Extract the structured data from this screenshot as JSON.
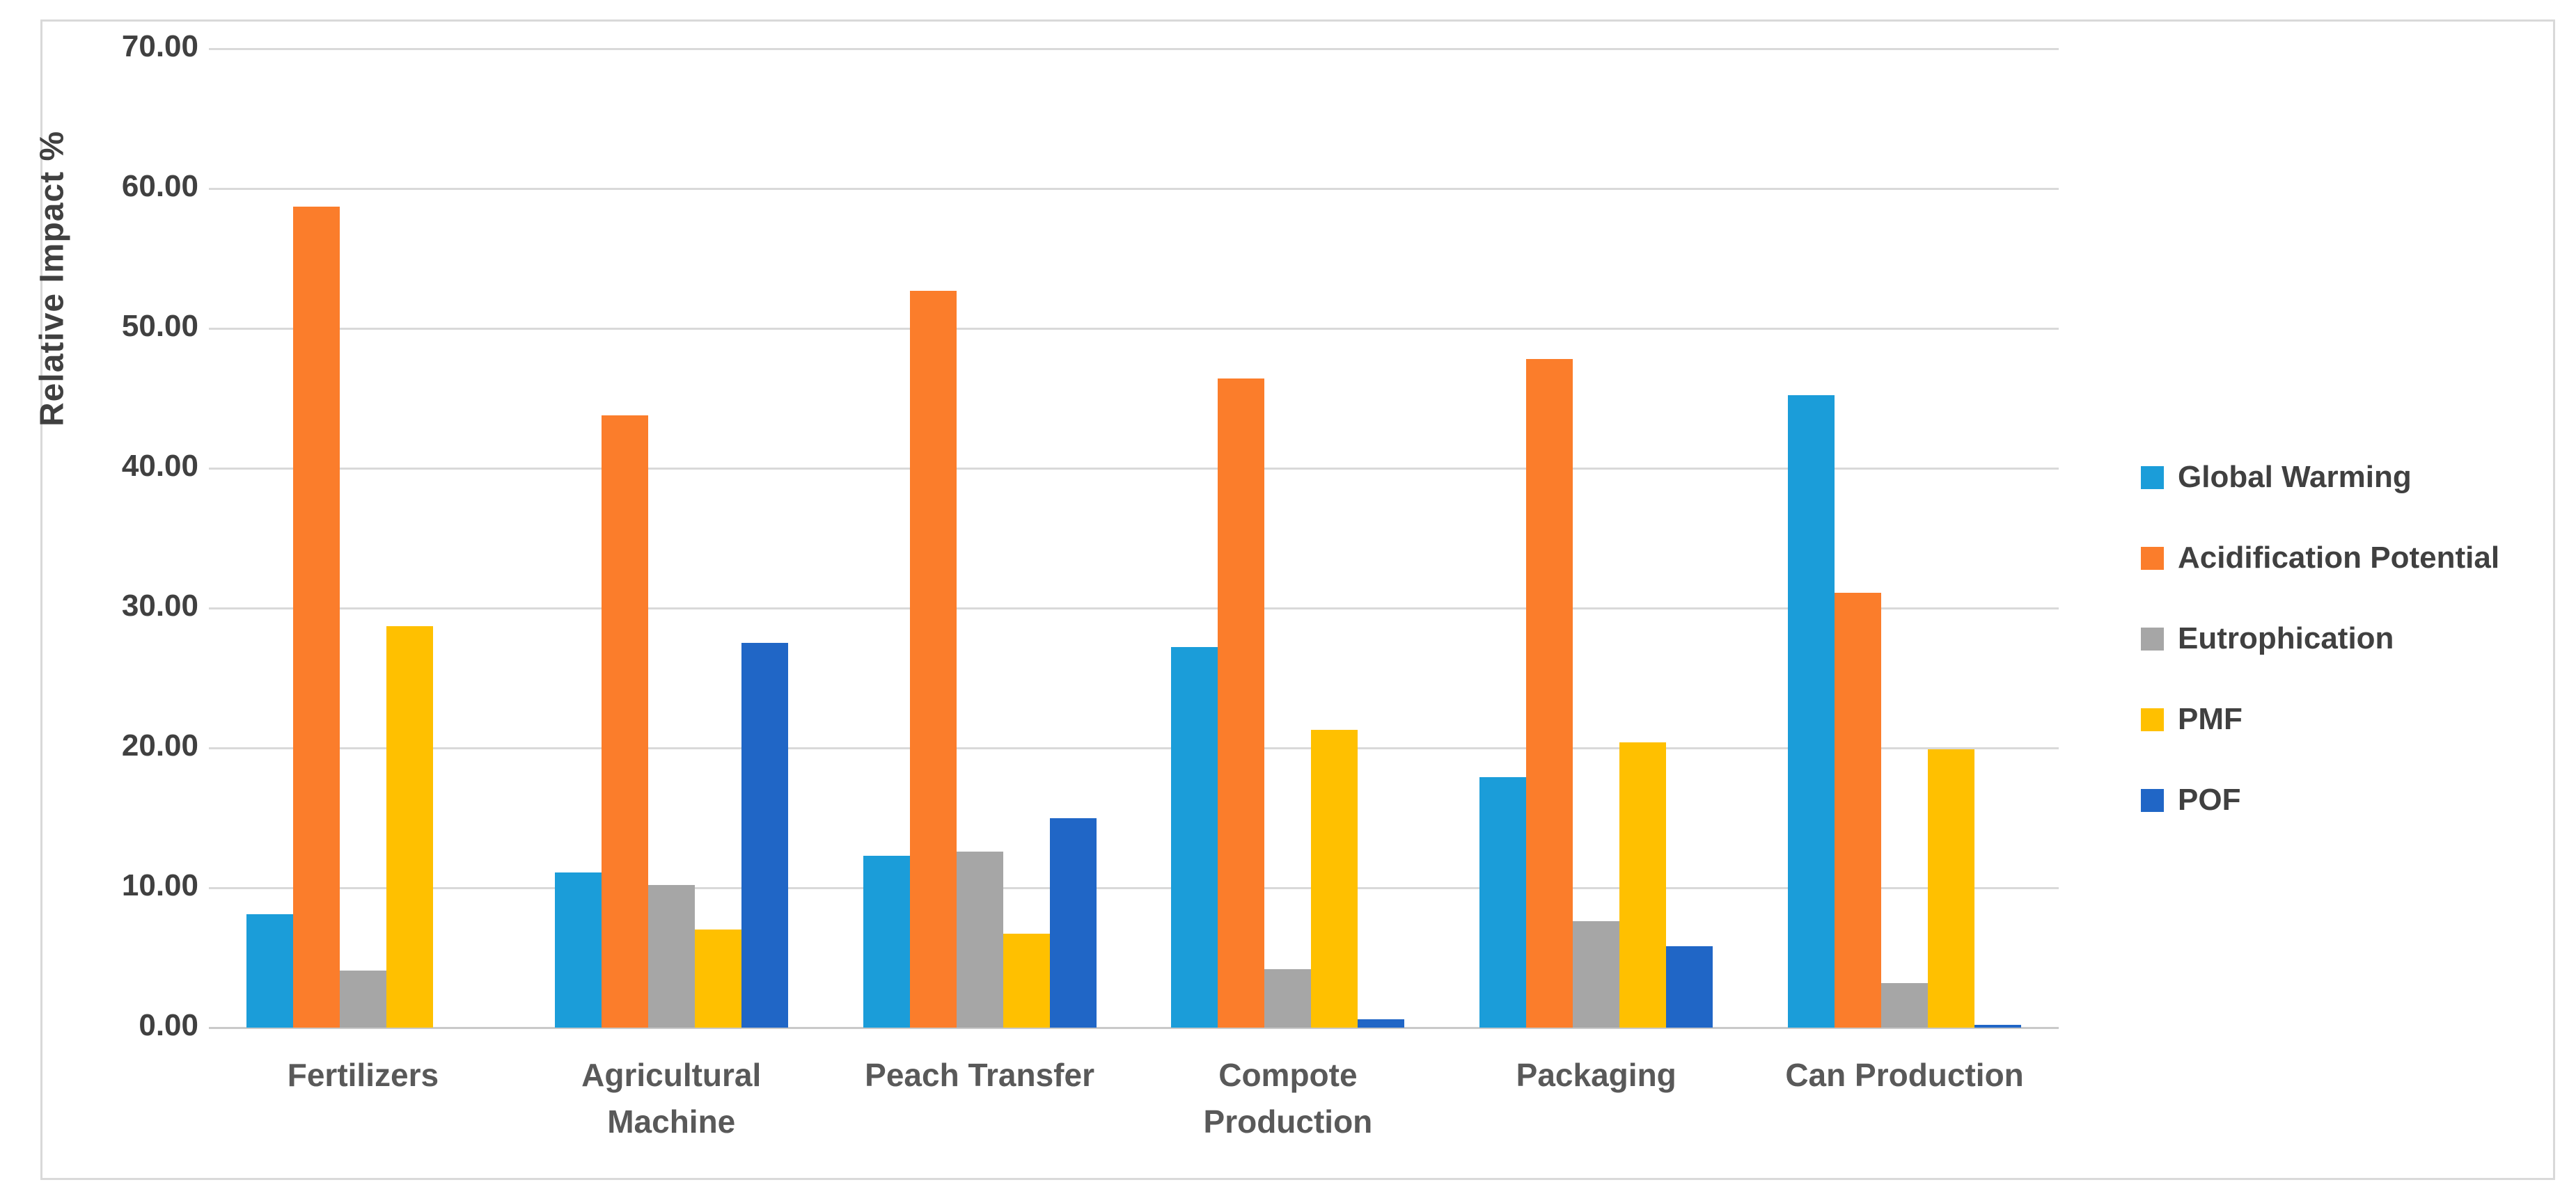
{
  "chart_data": {
    "type": "bar",
    "title": "",
    "xlabel": "",
    "ylabel": "Relative Impact %",
    "ylim": [
      0,
      70
    ],
    "ytick_step": 10,
    "ytick_decimals": 2,
    "grid": true,
    "legend_position": "right",
    "categories": [
      {
        "label": "Fertilizers",
        "lines": [
          "Fertilizers"
        ]
      },
      {
        "label": "Agricultural Machine",
        "lines": [
          "Agricultural",
          "Machine"
        ]
      },
      {
        "label": "Peach Transfer",
        "lines": [
          "Peach Transfer"
        ]
      },
      {
        "label": "Compote Production",
        "lines": [
          "Compote",
          "Production"
        ]
      },
      {
        "label": "Packaging",
        "lines": [
          "Packaging"
        ]
      },
      {
        "label": "Can Production",
        "lines": [
          "Can Production"
        ]
      }
    ],
    "series": [
      {
        "name": "Global Warming",
        "color": "#1b9dd9",
        "values": [
          8.1,
          11.1,
          12.3,
          27.2,
          17.9,
          45.2
        ]
      },
      {
        "name": "Acidification Potential",
        "color": "#fb7d2b",
        "values": [
          58.7,
          43.8,
          52.7,
          46.4,
          47.8,
          31.1
        ]
      },
      {
        "name": "Eutrophication",
        "color": "#a6a6a6",
        "values": [
          4.1,
          10.2,
          12.6,
          4.2,
          7.6,
          3.2
        ]
      },
      {
        "name": "PMF",
        "color": "#ffc000",
        "values": [
          28.7,
          7.0,
          6.7,
          21.3,
          20.4,
          19.9
        ]
      },
      {
        "name": "POF",
        "color": "#2066c6",
        "values": [
          0.0,
          27.5,
          15.0,
          0.6,
          5.8,
          0.2
        ]
      }
    ],
    "colors": {
      "gridline": "#d9d9d9",
      "axis_line": "#c9c9c9",
      "tick_text": "#404040",
      "category_text": "#595959",
      "legend_text": "#404040",
      "frame_border": "#d9d9d9",
      "background": "#ffffff"
    }
  }
}
